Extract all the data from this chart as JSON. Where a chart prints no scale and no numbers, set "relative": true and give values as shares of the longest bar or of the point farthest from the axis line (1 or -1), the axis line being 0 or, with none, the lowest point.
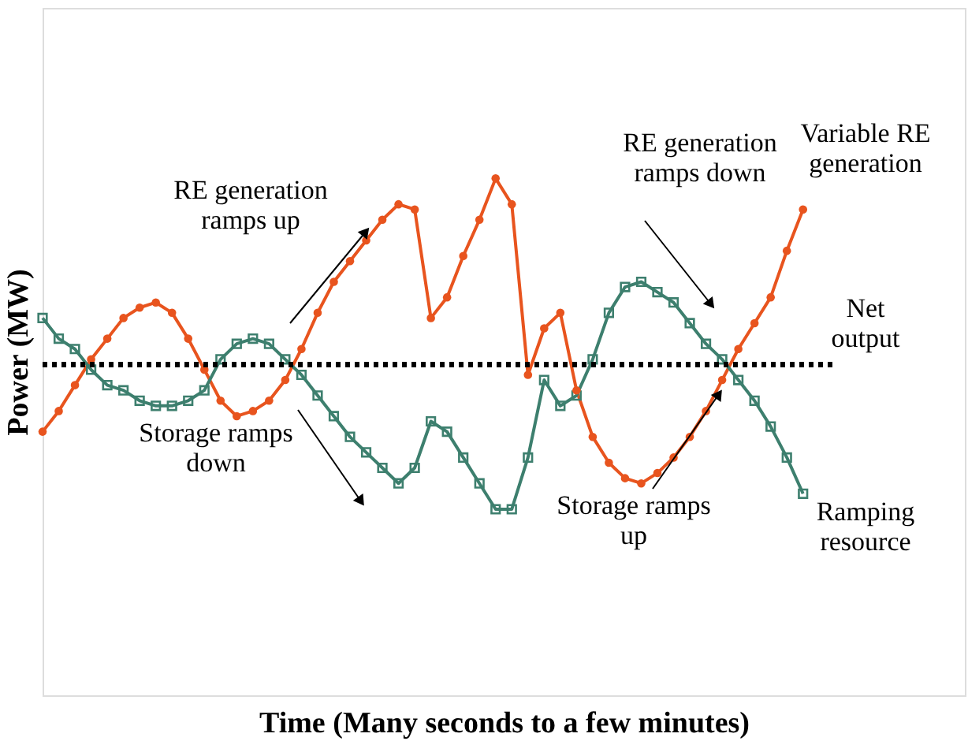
{
  "chart_data": {
    "type": "line",
    "relative": true,
    "xlabel": "Time (Many seconds to a few minutes)",
    "ylabel": "Power (MW)",
    "categories": [
      null,
      null,
      null,
      null,
      null,
      null,
      null,
      null,
      null,
      null,
      null,
      null,
      null,
      null,
      null,
      null,
      null,
      null,
      null,
      null,
      null,
      null,
      null,
      null,
      null,
      null,
      null,
      null,
      null,
      null,
      null,
      null,
      null,
      null,
      null,
      null,
      null,
      null,
      null,
      null,
      null,
      null,
      null,
      null,
      null,
      null,
      null,
      null,
      null,
      null,
      null,
      null,
      null,
      null,
      null,
      null,
      null,
      null
    ],
    "series": [
      {
        "name": "Variable RE generation",
        "color": "#e8541e",
        "marker": "circle",
        "values": [
          0.51,
          0.55,
          0.6,
          0.65,
          0.69,
          0.73,
          0.75,
          0.76,
          0.74,
          0.69,
          0.63,
          0.57,
          0.54,
          0.55,
          0.57,
          0.61,
          0.67,
          0.74,
          0.8,
          0.84,
          0.88,
          0.92,
          0.95,
          0.94,
          0.73,
          0.77,
          0.85,
          0.92,
          1.0,
          0.95,
          0.62,
          0.71,
          0.74,
          0.59,
          0.5,
          0.45,
          0.42,
          0.41,
          0.43,
          0.46,
          0.5,
          0.55,
          0.61,
          0.67,
          0.72,
          0.77,
          0.86,
          0.94,
          null,
          null,
          null,
          null,
          null,
          null,
          null,
          null,
          null,
          null
        ]
      },
      {
        "name": "Ramping resource",
        "color": "#3d7f6e",
        "marker": "square",
        "values": [
          0.73,
          0.69,
          0.67,
          0.63,
          0.6,
          0.59,
          0.57,
          0.56,
          0.56,
          0.57,
          0.59,
          0.65,
          0.68,
          0.69,
          0.68,
          0.65,
          0.62,
          0.58,
          0.54,
          0.5,
          0.47,
          0.44,
          0.41,
          0.44,
          0.53,
          0.51,
          0.46,
          0.41,
          0.36,
          0.36,
          0.46,
          0.61,
          0.56,
          0.58,
          0.65,
          0.74,
          0.79,
          0.8,
          0.78,
          0.76,
          0.72,
          0.68,
          0.65,
          0.61,
          0.57,
          0.52,
          0.46,
          0.39,
          null,
          null,
          null,
          null,
          null,
          null,
          null,
          null,
          null,
          null
        ]
      }
    ],
    "ref_lines": [
      {
        "axis": "y",
        "value": 0.64,
        "label": "Net output",
        "color": "#000000",
        "line_style": "dotted"
      }
    ],
    "annotations": [
      "RE generation ramps up",
      "RE generation ramps down",
      "Storage ramps down",
      "Storage ramps up"
    ],
    "grid": false
  }
}
